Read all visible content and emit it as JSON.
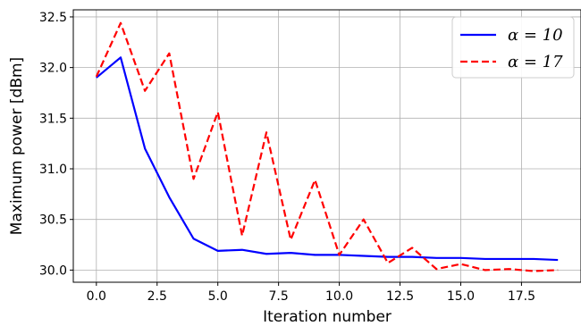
{
  "chart_data": {
    "type": "line",
    "title": "",
    "xlabel": "Iteration number",
    "ylabel": "Maximum power [dBm]",
    "xlim": [
      -0.95,
      19.95
    ],
    "ylim": [
      29.88,
      32.57
    ],
    "xticks": [
      0.0,
      2.5,
      5.0,
      7.5,
      10.0,
      12.5,
      15.0,
      17.5
    ],
    "xtick_labels": [
      "0.0",
      "2.5",
      "5.0",
      "7.5",
      "10.0",
      "12.5",
      "15.0",
      "17.5"
    ],
    "yticks": [
      30.0,
      30.5,
      31.0,
      31.5,
      32.0,
      32.5
    ],
    "ytick_labels": [
      "30.0",
      "30.5",
      "31.0",
      "31.5",
      "32.0",
      "32.5"
    ],
    "grid": true,
    "legend_position": "top-right",
    "x": [
      0,
      1,
      2,
      3,
      4,
      5,
      6,
      7,
      8,
      9,
      10,
      11,
      12,
      13,
      14,
      15,
      16,
      17,
      18,
      19
    ],
    "series": [
      {
        "name": "α = 10",
        "color": "#0000ff",
        "style": "solid",
        "values": [
          31.9,
          32.1,
          31.2,
          30.72,
          30.31,
          30.19,
          30.2,
          30.16,
          30.17,
          30.15,
          30.15,
          30.14,
          30.13,
          30.13,
          30.12,
          30.12,
          30.11,
          30.11,
          30.11,
          30.1
        ]
      },
      {
        "name": "α = 17",
        "color": "#ff0000",
        "style": "dashed",
        "values": [
          31.91,
          32.44,
          31.77,
          32.14,
          30.9,
          31.56,
          30.34,
          31.36,
          30.3,
          30.89,
          30.15,
          30.5,
          30.07,
          30.22,
          30.01,
          30.06,
          30.0,
          30.01,
          29.99,
          30.0
        ]
      }
    ]
  }
}
